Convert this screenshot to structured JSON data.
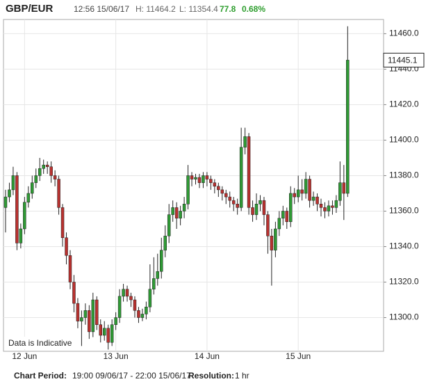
{
  "header": {
    "pair": "GBP/EUR",
    "time": "12:56 15/06/17",
    "high": "H: 11464.2",
    "low": "L: 11354.4",
    "change": "77.8",
    "change_pct": "0.68%"
  },
  "footer": {
    "period_label": "Chart Period:",
    "period": "19:00 09/06/17 - 22:00 15/06/17",
    "resolution_label": "Resolution:",
    "resolution": "1 hr"
  },
  "chart_data": {
    "type": "candlestick",
    "annotation": "Data is Indicative",
    "up_color": "#2f9a35",
    "down_color": "#b8312f",
    "grid": true,
    "ylim": [
      11281,
      11468
    ],
    "yticks": [
      {
        "value": 11300,
        "label": "11300.0"
      },
      {
        "value": 11320,
        "label": "11320.0"
      },
      {
        "value": 11340,
        "label": "11340.0"
      },
      {
        "value": 11360,
        "label": "11360.0"
      },
      {
        "value": 11380,
        "label": "11380.0"
      },
      {
        "value": 11400,
        "label": "11400.0"
      },
      {
        "value": 11420,
        "label": "11420.0"
      },
      {
        "value": 11440,
        "label": "11440.0"
      },
      {
        "value": 11460,
        "label": "11460.0"
      }
    ],
    "categories": [
      null,
      null,
      null,
      null,
      null,
      "12 Jun",
      null,
      null,
      null,
      null,
      null,
      null,
      null,
      null,
      null,
      null,
      null,
      null,
      null,
      null,
      null,
      null,
      null,
      null,
      null,
      null,
      null,
      null,
      null,
      "13 Jun",
      null,
      null,
      null,
      null,
      null,
      null,
      null,
      null,
      null,
      null,
      null,
      null,
      null,
      null,
      null,
      null,
      null,
      null,
      null,
      null,
      null,
      null,
      null,
      "14 Jun",
      null,
      null,
      null,
      null,
      null,
      null,
      null,
      null,
      null,
      null,
      null,
      null,
      null,
      null,
      null,
      null,
      null,
      null,
      null,
      null,
      null,
      null,
      null,
      "15 Jun",
      null,
      null,
      null,
      null,
      null,
      null,
      null,
      null,
      null,
      null,
      null,
      null,
      null
    ],
    "open": [
      11362,
      11368,
      11372,
      11380,
      11342,
      11350,
      11365,
      11370,
      11376,
      11380,
      11384,
      11386,
      11385,
      11380,
      11378,
      11362,
      11345,
      11335,
      11320,
      11308,
      11298,
      11300,
      11304,
      11292,
      11310,
      11296,
      11290,
      11294,
      11286,
      11296,
      11300,
      11312,
      11316,
      11312,
      11310,
      11304,
      11300,
      11302,
      11306,
      11316,
      11322,
      11326,
      11338,
      11346,
      11358,
      11362,
      11356,
      11360,
      11364,
      11380,
      11378,
      11379,
      11376,
      11380,
      11378,
      11376,
      11374,
      11372,
      11370,
      11368,
      11366,
      11364,
      11362,
      11396,
      11402,
      11362,
      11358,
      11364,
      11366,
      11358,
      11346,
      11338,
      11350,
      11356,
      11360,
      11354,
      11370,
      11368,
      11372,
      11370,
      11378,
      11366,
      11368,
      11364,
      11362,
      11360,
      11363,
      11362,
      11366,
      11376,
      11370
    ],
    "high": [
      11372,
      11376,
      11385,
      11382,
      11353,
      11368,
      11374,
      11380,
      11384,
      11390,
      11389,
      11388,
      11388,
      11383,
      11380,
      11364,
      11348,
      11338,
      11324,
      11311,
      11304,
      11308,
      11307,
      11314,
      11312,
      11299,
      11298,
      11296,
      11299,
      11303,
      11316,
      11319,
      11318,
      11314,
      11312,
      11306,
      11305,
      11309,
      11330,
      11334,
      11336,
      11345,
      11352,
      11364,
      11366,
      11365,
      11363,
      11368,
      11386,
      11382,
      11381,
      11381,
      11382,
      11382,
      11380,
      11378,
      11376,
      11374,
      11372,
      11371,
      11368,
      11367,
      11407,
      11407,
      11404,
      11366,
      11370,
      11369,
      11368,
      11360,
      11350,
      11354,
      11360,
      11363,
      11362,
      11374,
      11373,
      11380,
      11378,
      11382,
      11380,
      11371,
      11370,
      11367,
      11365,
      11366,
      11366,
      11369,
      11388,
      11386,
      11464.2
    ],
    "low": [
      11348,
      11365,
      11369,
      11338,
      11339,
      11347,
      11362,
      11367,
      11373,
      11377,
      11381,
      11381,
      11376,
      11374,
      11358,
      11340,
      11330,
      11316,
      11303,
      11294,
      11284,
      11296,
      11288,
      11289,
      11293,
      11286,
      11287,
      11282,
      11284,
      11293,
      11297,
      11309,
      11309,
      11306,
      11300,
      11297,
      11298,
      11299,
      11303,
      11313,
      11318,
      11322,
      11334,
      11342,
      11354,
      11350,
      11352,
      11356,
      11361,
      11374,
      11375,
      11373,
      11373,
      11374,
      11372,
      11370,
      11368,
      11366,
      11364,
      11362,
      11360,
      11358,
      11360,
      11392,
      11358,
      11354,
      11355,
      11360,
      11352,
      11336,
      11318,
      11334,
      11346,
      11352,
      11350,
      11351,
      11364,
      11365,
      11366,
      11367,
      11362,
      11363,
      11360,
      11357,
      11356,
      11357,
      11358,
      11359,
      11363,
      11355,
      11368
    ],
    "close": [
      11368,
      11372,
      11380,
      11342,
      11350,
      11365,
      11370,
      11376,
      11380,
      11384,
      11386,
      11385,
      11380,
      11378,
      11362,
      11345,
      11335,
      11320,
      11308,
      11298,
      11300,
      11304,
      11292,
      11310,
      11296,
      11290,
      11294,
      11286,
      11296,
      11300,
      11312,
      11316,
      11312,
      11310,
      11304,
      11300,
      11302,
      11306,
      11316,
      11322,
      11326,
      11338,
      11346,
      11358,
      11362,
      11356,
      11360,
      11364,
      11380,
      11378,
      11379,
      11376,
      11380,
      11378,
      11376,
      11374,
      11372,
      11370,
      11368,
      11366,
      11364,
      11362,
      11396,
      11402,
      11362,
      11358,
      11364,
      11366,
      11358,
      11346,
      11338,
      11350,
      11356,
      11360,
      11354,
      11370,
      11368,
      11372,
      11370,
      11378,
      11366,
      11368,
      11364,
      11362,
      11360,
      11363,
      11362,
      11366,
      11376,
      11370,
      11445.1
    ]
  }
}
